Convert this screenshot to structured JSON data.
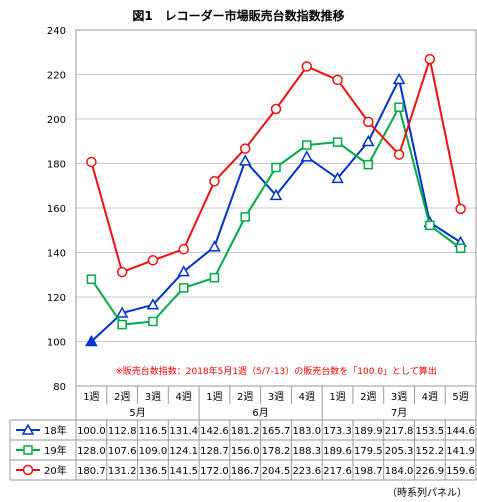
{
  "chart_data": {
    "type": "line",
    "title": "図1　レコーダー市場販売台数指数推移",
    "note": "※販売台数指数：2018年5月1週（5/7-13）の販売台数を「100.0」として算出",
    "source": "（時系列パネル）",
    "ylim": [
      80,
      240
    ],
    "yticks": [
      "80",
      "100",
      "120",
      "140",
      "160",
      "180",
      "200",
      "220",
      "240"
    ],
    "weeks": [
      "1週",
      "2週",
      "3週",
      "4週",
      "1週",
      "2週",
      "3週",
      "4週",
      "1週",
      "2週",
      "3週",
      "4週",
      "5週"
    ],
    "months": [
      {
        "label": "5月",
        "start": 0,
        "end": 3
      },
      {
        "label": "6月",
        "start": 4,
        "end": 7
      },
      {
        "label": "7月",
        "start": 8,
        "end": 12
      }
    ],
    "series": [
      {
        "name": "18年",
        "color": "#0033cc",
        "marker": "triangle",
        "values": [
          100.0,
          112.8,
          116.5,
          131.4,
          142.6,
          181.2,
          165.7,
          183.0,
          173.3,
          189.9,
          217.8,
          153.5,
          144.6
        ],
        "labels": [
          "100.0",
          "112.8",
          "116.5",
          "131.4",
          "142.6",
          "181.2",
          "165.7",
          "183.0",
          "173.3",
          "189.9",
          "217.8",
          "153.5",
          "144.6"
        ]
      },
      {
        "name": "19年",
        "color": "#00aa44",
        "marker": "square",
        "values": [
          128.0,
          107.6,
          109.0,
          124.1,
          128.7,
          156.0,
          178.2,
          188.3,
          189.6,
          179.5,
          205.3,
          152.2,
          141.9
        ],
        "labels": [
          "128.0",
          "107.6",
          "109.0",
          "124.1",
          "128.7",
          "156.0",
          "178.2",
          "188.3",
          "189.6",
          "179.5",
          "205.3",
          "152.2",
          "141.9"
        ]
      },
      {
        "name": "20年",
        "color": "#ee1111",
        "marker": "circle",
        "values": [
          180.7,
          131.2,
          136.5,
          141.5,
          172.0,
          186.7,
          204.5,
          223.6,
          217.6,
          198.7,
          184.0,
          226.9,
          159.6
        ],
        "labels": [
          "180.7",
          "131.2",
          "136.5",
          "141.5",
          "172.0",
          "186.7",
          "204.5",
          "223.6",
          "217.6",
          "198.7",
          "184.0",
          "226.9",
          "159.6"
        ]
      }
    ]
  }
}
